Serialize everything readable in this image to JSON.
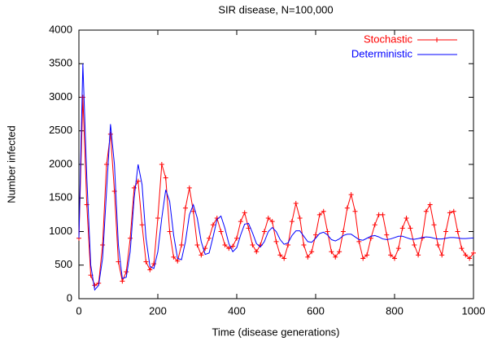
{
  "chart_data": {
    "type": "line",
    "title": "SIR disease, N=100,000",
    "xlabel": "Time (disease generations)",
    "ylabel": "Number infected",
    "x": [
      0,
      10,
      20,
      30,
      40,
      50,
      60,
      70,
      80,
      90,
      100,
      110,
      120,
      130,
      140,
      150,
      160,
      170,
      180,
      190,
      200,
      210,
      220,
      230,
      240,
      250,
      260,
      270,
      280,
      290,
      300,
      310,
      320,
      330,
      340,
      350,
      360,
      370,
      380,
      390,
      400,
      410,
      420,
      430,
      440,
      450,
      460,
      470,
      480,
      490,
      500,
      510,
      520,
      530,
      540,
      550,
      560,
      570,
      580,
      590,
      600,
      610,
      620,
      630,
      640,
      650,
      660,
      670,
      680,
      690,
      700,
      710,
      720,
      730,
      740,
      750,
      760,
      770,
      780,
      790,
      800,
      810,
      820,
      830,
      840,
      850,
      860,
      870,
      880,
      890,
      900,
      910,
      920,
      930,
      940,
      950,
      960,
      970,
      980,
      990,
      1000
    ],
    "series": [
      {
        "name": "Stochastic",
        "color": "#ff0000",
        "marker": "+",
        "values": [
          900,
          3000,
          1400,
          350,
          200,
          230,
          800,
          2000,
          2450,
          1600,
          550,
          260,
          400,
          900,
          1650,
          1750,
          1100,
          550,
          430,
          520,
          1200,
          2000,
          1800,
          1000,
          620,
          560,
          800,
          1350,
          1650,
          1300,
          800,
          650,
          750,
          900,
          1100,
          1200,
          1000,
          800,
          750,
          780,
          900,
          1150,
          1280,
          1050,
          800,
          700,
          800,
          1000,
          1200,
          1150,
          850,
          650,
          600,
          800,
          1150,
          1420,
          1200,
          800,
          620,
          700,
          950,
          1250,
          1300,
          1000,
          700,
          620,
          700,
          1000,
          1350,
          1550,
          1300,
          850,
          600,
          650,
          900,
          1100,
          1250,
          1250,
          950,
          650,
          600,
          750,
          1050,
          1200,
          1050,
          800,
          650,
          900,
          1300,
          1400,
          1100,
          800,
          650,
          1000,
          1280,
          1300,
          1000,
          750,
          650,
          600,
          680
        ]
      },
      {
        "name": "Deterministic",
        "color": "#0000ff",
        "values": [
          900,
          3500,
          1800,
          500,
          130,
          200,
          600,
          1600,
          2600,
          2000,
          800,
          300,
          320,
          700,
          1500,
          2000,
          1700,
          900,
          480,
          450,
          700,
          1200,
          1620,
          1450,
          950,
          600,
          580,
          850,
          1250,
          1400,
          1200,
          850,
          660,
          680,
          920,
          1180,
          1230,
          1050,
          820,
          700,
          760,
          950,
          1110,
          1120,
          980,
          820,
          770,
          850,
          1000,
          1060,
          1000,
          880,
          810,
          830,
          940,
          1010,
          1010,
          930,
          850,
          840,
          900,
          970,
          990,
          950,
          880,
          860,
          890,
          940,
          960,
          960,
          920,
          880,
          870,
          900,
          930,
          940,
          920,
          890,
          880,
          890,
          910,
          930,
          930,
          910,
          890,
          885,
          895,
          910,
          920,
          915,
          900,
          890,
          890,
          900,
          910,
          910,
          905,
          895,
          895,
          900,
          905
        ]
      }
    ],
    "xlim": [
      0,
      1000
    ],
    "xticks": [
      0,
      200,
      400,
      600,
      800,
      1000
    ],
    "ylim": [
      0,
      4000
    ],
    "yticks": [
      0,
      500,
      1000,
      1500,
      2000,
      2500,
      3000,
      3500,
      4000
    ],
    "grid": false,
    "legend": "upper right"
  }
}
